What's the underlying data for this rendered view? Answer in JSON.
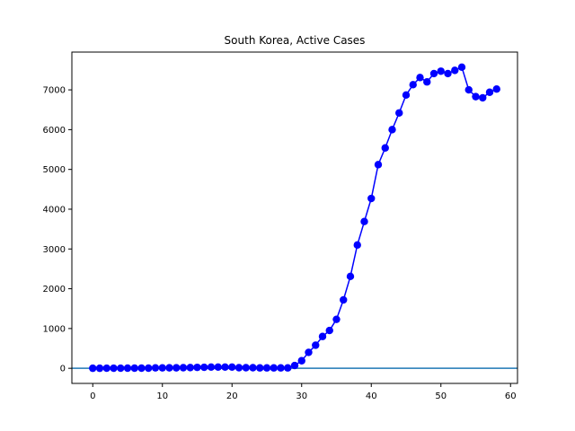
{
  "chart_data": {
    "type": "line",
    "title": "South Korea, Active Cases",
    "xlabel": "",
    "ylabel": "",
    "xlim": [
      -3,
      61
    ],
    "ylim": [
      -380,
      7950
    ],
    "x_ticks": [
      0,
      10,
      20,
      30,
      40,
      50,
      60
    ],
    "y_ticks": [
      0,
      1000,
      2000,
      3000,
      4000,
      5000,
      6000,
      7000
    ],
    "grid": false,
    "legend": "none",
    "reference_line": {
      "y": 0,
      "color": "#1f77b4"
    },
    "series": [
      {
        "color": "#0000ff",
        "marker": "circle",
        "x": [
          0,
          1,
          2,
          3,
          4,
          5,
          6,
          7,
          8,
          9,
          10,
          11,
          12,
          13,
          14,
          15,
          16,
          17,
          18,
          19,
          20,
          21,
          22,
          23,
          24,
          25,
          26,
          27,
          28,
          29,
          30,
          31,
          32,
          33,
          34,
          35,
          36,
          37,
          38,
          39,
          40,
          41,
          42,
          43,
          44,
          45,
          46,
          47,
          48,
          49,
          50,
          51,
          52,
          53,
          54,
          55,
          56,
          57,
          58
        ],
        "values": [
          1,
          1,
          2,
          2,
          3,
          4,
          4,
          4,
          4,
          11,
          11,
          12,
          12,
          15,
          18,
          23,
          25,
          30,
          30,
          30,
          30,
          15,
          15,
          15,
          10,
          10,
          10,
          10,
          10,
          70,
          190,
          400,
          580,
          800,
          950,
          1230,
          1720,
          2310,
          3100,
          3690,
          4270,
          5120,
          5540,
          6000,
          6420,
          6870,
          7130,
          7310,
          7200,
          7410,
          7470,
          7410,
          7490,
          7570,
          7000,
          6830,
          6800,
          6940,
          7020
        ]
      }
    ]
  }
}
